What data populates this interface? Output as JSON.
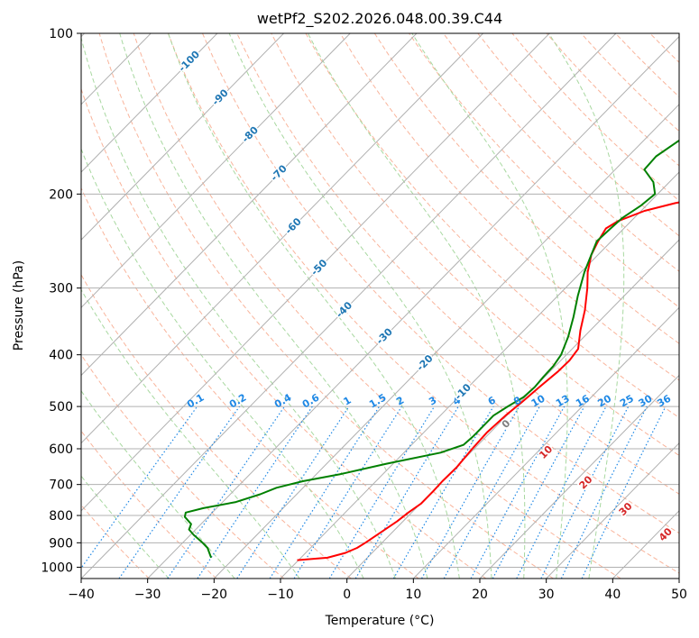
{
  "chart_data": {
    "type": "line",
    "title": "wetPf2_S202.2026.048.00.39.C44",
    "xlabel": "Temperature (°C)",
    "ylabel": "Pressure (hPa)",
    "xlim": [
      -40,
      50
    ],
    "ylim": [
      1050,
      100
    ],
    "y_scale": "log",
    "x_ticks": [
      "−40",
      "−30",
      "−20",
      "−10",
      "0",
      "10",
      "20",
      "30",
      "40",
      "50"
    ],
    "x_tick_values": [
      -40,
      -30,
      -20,
      -10,
      0,
      10,
      20,
      30,
      40,
      50
    ],
    "y_ticks": [
      "100",
      "200",
      "300",
      "400",
      "500",
      "600",
      "700",
      "800",
      "900",
      "1000"
    ],
    "y_tick_values": [
      100,
      200,
      300,
      400,
      500,
      600,
      700,
      800,
      900,
      1000
    ],
    "grid": true,
    "colors": {
      "temperature": "#ff0000",
      "dewpoint": "#008000",
      "mixing_ratio": "#1e88e5",
      "isotherm_label": "#1f77b4",
      "moist_label": "#d62728",
      "zero_label": "#7f7f7f"
    },
    "series": [
      {
        "p": [
          970,
          960,
          940,
          920,
          900,
          860,
          820,
          790,
          760,
          720,
          690,
          650,
          600,
          560,
          520,
          490,
          460,
          430,
          410,
          390,
          360,
          330,
          300,
          280,
          260,
          245,
          232,
          225,
          215,
          208,
          200,
          195,
          185,
          175,
          165,
          150,
          135,
          122,
          112,
          105,
          100
        ],
        "t": [
          -10.2,
          -6.0,
          -4.0,
          -3.0,
          -2.5,
          -1.7,
          -0.9,
          -0.5,
          0.1,
          0.1,
          0.0,
          0.1,
          -0.3,
          -0.5,
          -0.2,
          0.3,
          0.7,
          1.2,
          1.3,
          0.9,
          -1.5,
          -3.8,
          -6.7,
          -9.0,
          -11.0,
          -12.0,
          -12.7,
          -12.0,
          -9.5,
          -6.0,
          -0.4,
          1.6,
          3.2,
          9.0,
          17.0,
          21.0,
          25.0,
          29.0,
          33.0,
          35.0,
          36.0
        ]
      },
      {
        "p": [
          960,
          940,
          920,
          900,
          870,
          850,
          830,
          805,
          790,
          775,
          755,
          730,
          710,
          690,
          670,
          640,
          610,
          590,
          570,
          545,
          520,
          500,
          480,
          460,
          440,
          420,
          400,
          370,
          340,
          310,
          280,
          260,
          245,
          232,
          222,
          210,
          200,
          190,
          180,
          170,
          160,
          150,
          140,
          130,
          120,
          112,
          105,
          100
        ],
        "t": [
          -23.5,
          -24.5,
          -25.5,
          -27.0,
          -29.5,
          -31.0,
          -31.5,
          -33.5,
          -34.0,
          -32.0,
          -28.0,
          -25.5,
          -24.0,
          -21.0,
          -16.5,
          -11.0,
          -4.5,
          -2.2,
          -2.0,
          -2.0,
          -2.0,
          -1.2,
          -0.2,
          0.0,
          -0.2,
          -0.3,
          -0.8,
          -2.4,
          -4.5,
          -7.0,
          -9.5,
          -11.0,
          -12.2,
          -12.0,
          -11.8,
          -10.8,
          -10.4,
          -12.4,
          -15.6,
          -15.8,
          -14.8,
          -13.5,
          -11.5,
          -9.0,
          -7.0,
          -5.0,
          -3.5,
          -2.5
        ]
      }
    ],
    "isotherm_labels": [
      "-100",
      "-90",
      "-80",
      "-70",
      "-60",
      "-50",
      "-40",
      "-30",
      "-20",
      "-10"
    ],
    "mixing_ratio_labels": [
      "0.1",
      "0.2",
      "0.4",
      "0.6",
      "1",
      "1.5",
      "2",
      "3",
      "4",
      "6",
      "8",
      "10",
      "13",
      "16",
      "20",
      "25",
      "30",
      "36"
    ],
    "moist_adiabat_labels": [
      "0",
      "10",
      "20",
      "30",
      "40"
    ]
  }
}
